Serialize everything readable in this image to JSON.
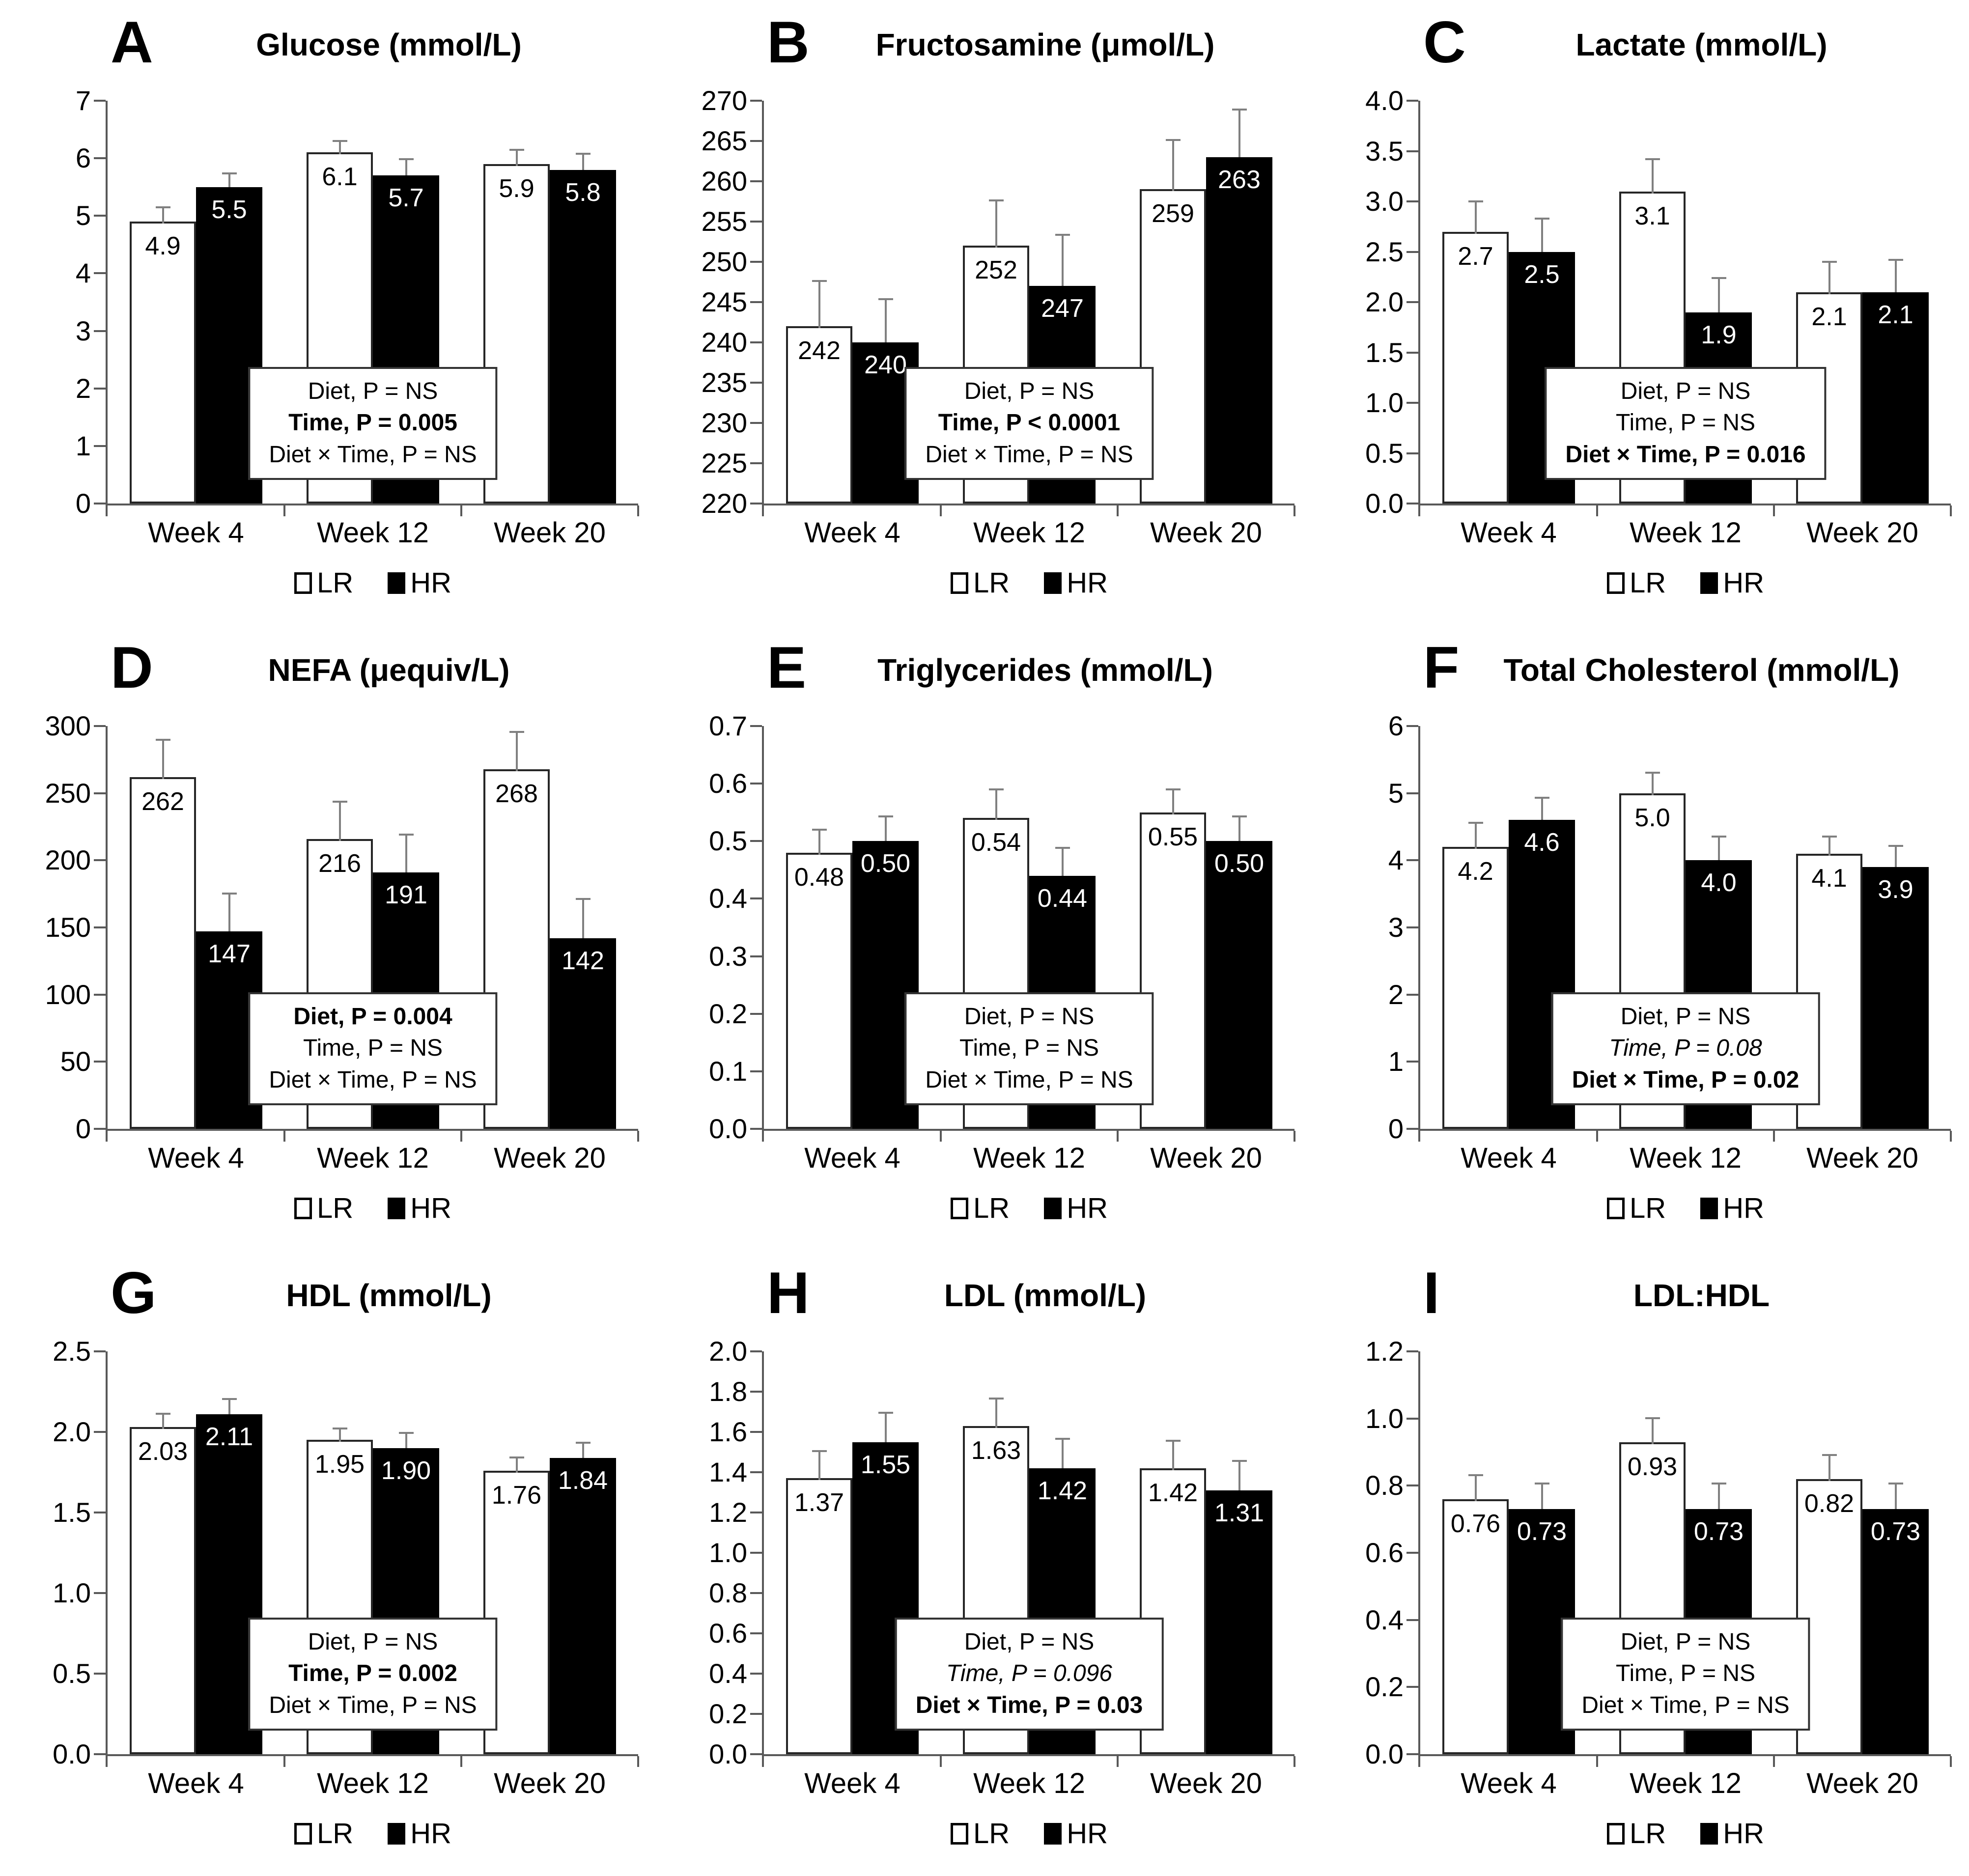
{
  "legend": {
    "lr_label": "LR",
    "hr_label": "HR"
  },
  "colors": {
    "axis": "#595959",
    "error_bar": "#808080",
    "bar_border": "#262626",
    "lr_fill": "#ffffff",
    "hr_fill": "#000000",
    "background": "#ffffff"
  },
  "x_categories": [
    "Week 4",
    "Week 12",
    "Week 20"
  ],
  "chart_data": [
    {
      "panel": "A",
      "type": "bar",
      "title": "Glucose (mmol/L)",
      "categories": [
        "Week 4",
        "Week 12",
        "Week 20"
      ],
      "ylim": [
        0,
        7
      ],
      "ystep": 1,
      "ydecimals": 0,
      "series": [
        {
          "name": "LR",
          "values": [
            4.9,
            6.1,
            5.9
          ],
          "labels": [
            "4.9",
            "6.1",
            "5.9"
          ],
          "errors": [
            0.3,
            0.25,
            0.3
          ]
        },
        {
          "name": "HR",
          "values": [
            5.5,
            5.7,
            5.8
          ],
          "labels": [
            "5.5",
            "5.7",
            "5.8"
          ],
          "errors": [
            0.25,
            0.3,
            0.3
          ]
        }
      ],
      "stats": [
        {
          "text": "Diet, P = NS",
          "style": "normal"
        },
        {
          "text": "Time, P = 0.005",
          "style": "bold"
        },
        {
          "text": "Diet × Time, P = NS",
          "style": "normal"
        }
      ]
    },
    {
      "panel": "B",
      "type": "bar",
      "title": "Fructosamine (μmol/L)",
      "categories": [
        "Week 4",
        "Week 12",
        "Week 20"
      ],
      "ylim": [
        220,
        270
      ],
      "ystep": 5,
      "ydecimals": 0,
      "series": [
        {
          "name": "LR",
          "values": [
            242,
            252,
            259
          ],
          "labels": [
            "242",
            "252",
            "259"
          ],
          "errors": [
            6,
            6,
            6.5
          ]
        },
        {
          "name": "HR",
          "values": [
            240,
            247,
            263
          ],
          "labels": [
            "240",
            "247",
            "263"
          ],
          "errors": [
            5.5,
            6.5,
            6
          ]
        }
      ],
      "stats": [
        {
          "text": "Diet, P = NS",
          "style": "normal"
        },
        {
          "text": "Time, P < 0.0001",
          "style": "bold"
        },
        {
          "text": "Diet × Time, P = NS",
          "style": "normal"
        }
      ]
    },
    {
      "panel": "C",
      "type": "bar",
      "title": "Lactate (mmol/L)",
      "categories": [
        "Week 4",
        "Week 12",
        "Week 20"
      ],
      "ylim": [
        0,
        4
      ],
      "ystep": 0.5,
      "ydecimals": 1,
      "series": [
        {
          "name": "LR",
          "values": [
            2.7,
            3.1,
            2.1
          ],
          "labels": [
            "2.7",
            "3.1",
            "2.1"
          ],
          "errors": [
            0.33,
            0.35,
            0.33
          ]
        },
        {
          "name": "HR",
          "values": [
            2.5,
            1.9,
            2.1
          ],
          "labels": [
            "2.5",
            "1.9",
            "2.1"
          ],
          "errors": [
            0.34,
            0.35,
            0.33
          ]
        }
      ],
      "stats": [
        {
          "text": "Diet, P = NS",
          "style": "normal"
        },
        {
          "text": "Time, P = NS",
          "style": "normal"
        },
        {
          "text": "Diet × Time, P = 0.016",
          "style": "bold"
        }
      ]
    },
    {
      "panel": "D",
      "type": "bar",
      "title": "NEFA (μequiv/L)",
      "categories": [
        "Week 4",
        "Week 12",
        "Week 20"
      ],
      "ylim": [
        0,
        300
      ],
      "ystep": 50,
      "ydecimals": 0,
      "series": [
        {
          "name": "LR",
          "values": [
            262,
            216,
            268
          ],
          "labels": [
            "262",
            "216",
            "268"
          ],
          "errors": [
            30,
            30,
            30
          ]
        },
        {
          "name": "HR",
          "values": [
            147,
            191,
            142
          ],
          "labels": [
            "147",
            "191",
            "142"
          ],
          "errors": [
            29,
            29,
            30
          ]
        }
      ],
      "stats": [
        {
          "text": "Diet, P = 0.004",
          "style": "bold"
        },
        {
          "text": "Time, P = NS",
          "style": "normal"
        },
        {
          "text": "Diet × Time, P = NS",
          "style": "normal"
        }
      ]
    },
    {
      "panel": "E",
      "type": "bar",
      "title": "Triglycerides (mmol/L)",
      "categories": [
        "Week 4",
        "Week 12",
        "Week 20"
      ],
      "ylim": [
        0,
        0.7
      ],
      "ystep": 0.1,
      "ydecimals": 1,
      "series": [
        {
          "name": "LR",
          "values": [
            0.48,
            0.54,
            0.55
          ],
          "labels": [
            "0.48",
            "0.54",
            "0.55"
          ],
          "errors": [
            0.045,
            0.055,
            0.045
          ]
        },
        {
          "name": "HR",
          "values": [
            0.5,
            0.44,
            0.5
          ],
          "labels": [
            "0.50",
            "0.44",
            "0.50"
          ],
          "errors": [
            0.045,
            0.05,
            0.045
          ]
        }
      ],
      "stats": [
        {
          "text": "Diet, P = NS",
          "style": "normal"
        },
        {
          "text": "Time, P = NS",
          "style": "normal"
        },
        {
          "text": "Diet × Time, P = NS",
          "style": "normal"
        }
      ]
    },
    {
      "panel": "F",
      "type": "bar",
      "title": "Total Cholesterol (mmol/L)",
      "categories": [
        "Week 4",
        "Week 12",
        "Week 20"
      ],
      "ylim": [
        0,
        6
      ],
      "ystep": 1,
      "ydecimals": 0,
      "series": [
        {
          "name": "LR",
          "values": [
            4.2,
            5.0,
            4.1
          ],
          "labels": [
            "4.2",
            "5.0",
            "4.1"
          ],
          "errors": [
            0.4,
            0.35,
            0.3
          ]
        },
        {
          "name": "HR",
          "values": [
            4.6,
            4.0,
            3.9
          ],
          "labels": [
            "4.6",
            "4.0",
            "3.9"
          ],
          "errors": [
            0.35,
            0.37,
            0.33
          ]
        }
      ],
      "stats": [
        {
          "text": "Diet, P = NS",
          "style": "normal"
        },
        {
          "text": "Time, P = 0.08",
          "style": "italic"
        },
        {
          "text": "Diet × Time, P = 0.02",
          "style": "bold"
        }
      ]
    },
    {
      "panel": "G",
      "type": "bar",
      "title": "HDL (mmol/L)",
      "categories": [
        "Week 4",
        "Week 12",
        "Week 20"
      ],
      "ylim": [
        0,
        2.5
      ],
      "ystep": 0.5,
      "ydecimals": 1,
      "series": [
        {
          "name": "LR",
          "values": [
            2.03,
            1.95,
            1.76
          ],
          "labels": [
            "2.03",
            "1.95",
            "1.76"
          ],
          "errors": [
            0.1,
            0.09,
            0.1
          ]
        },
        {
          "name": "HR",
          "values": [
            2.11,
            1.9,
            1.84
          ],
          "labels": [
            "2.11",
            "1.90",
            "1.84"
          ],
          "errors": [
            0.1,
            0.1,
            0.1
          ]
        }
      ],
      "stats": [
        {
          "text": "Diet, P = NS",
          "style": "normal"
        },
        {
          "text": "Time, P = 0.002",
          "style": "bold"
        },
        {
          "text": "Diet × Time, P = NS",
          "style": "normal"
        }
      ]
    },
    {
      "panel": "H",
      "type": "bar",
      "title": "LDL (mmol/L)",
      "categories": [
        "Week 4",
        "Week 12",
        "Week 20"
      ],
      "ylim": [
        0,
        2
      ],
      "ystep": 0.2,
      "ydecimals": 1,
      "series": [
        {
          "name": "LR",
          "values": [
            1.37,
            1.63,
            1.42
          ],
          "labels": [
            "1.37",
            "1.63",
            "1.42"
          ],
          "errors": [
            0.15,
            0.15,
            0.15
          ]
        },
        {
          "name": "HR",
          "values": [
            1.55,
            1.42,
            1.31
          ],
          "labels": [
            "1.55",
            "1.42",
            "1.31"
          ],
          "errors": [
            0.15,
            0.15,
            0.15
          ]
        }
      ],
      "stats": [
        {
          "text": "Diet, P = NS",
          "style": "normal"
        },
        {
          "text": "Time, P = 0.096",
          "style": "italic"
        },
        {
          "text": "Diet × Time, P = 0.03",
          "style": "bold"
        }
      ]
    },
    {
      "panel": "I",
      "type": "bar",
      "title": "LDL:HDL",
      "categories": [
        "Week 4",
        "Week 12",
        "Week 20"
      ],
      "ylim": [
        0,
        1.2
      ],
      "ystep": 0.2,
      "ydecimals": 1,
      "series": [
        {
          "name": "LR",
          "values": [
            0.76,
            0.93,
            0.82
          ],
          "labels": [
            "0.76",
            "0.93",
            "0.82"
          ],
          "errors": [
            0.08,
            0.08,
            0.08
          ]
        },
        {
          "name": "HR",
          "values": [
            0.73,
            0.73,
            0.73
          ],
          "labels": [
            "0.73",
            "0.73",
            "0.73"
          ],
          "errors": [
            0.08,
            0.08,
            0.08
          ]
        }
      ],
      "stats": [
        {
          "text": "Diet, P = NS",
          "style": "normal"
        },
        {
          "text": "Time, P = NS",
          "style": "normal"
        },
        {
          "text": "Diet × Time, P = NS",
          "style": "normal"
        }
      ]
    }
  ]
}
